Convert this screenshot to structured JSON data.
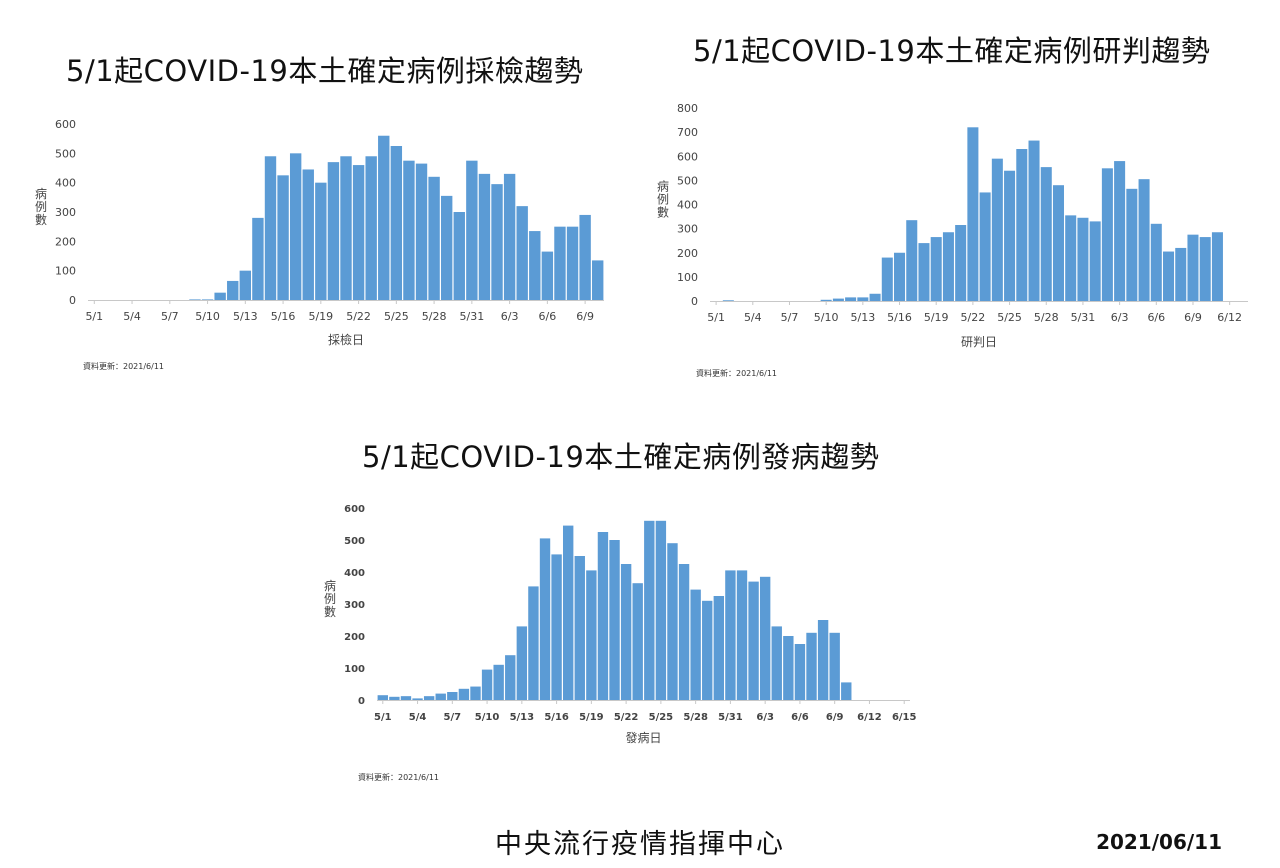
{
  "footer": {
    "agency": "中央流行疫情指揮中心",
    "date": "2021/06/11"
  },
  "chart_data": [
    {
      "type": "bar",
      "title": "5/1起COVID-19本土確定病例採檢趨勢",
      "xlabel": "採檢日",
      "ylabel": "病例數",
      "ylim": [
        0,
        600
      ],
      "yticks": [
        0,
        100,
        200,
        300,
        400,
        500,
        600
      ],
      "grid": false,
      "x_tick_labels": [
        "5/1",
        "5/4",
        "5/7",
        "5/10",
        "5/13",
        "5/16",
        "5/19",
        "5/22",
        "5/25",
        "5/28",
        "5/31",
        "6/3",
        "6/6",
        "6/9"
      ],
      "categories": [
        "5/1",
        "5/2",
        "5/3",
        "5/4",
        "5/5",
        "5/6",
        "5/7",
        "5/8",
        "5/9",
        "5/10",
        "5/11",
        "5/12",
        "5/13",
        "5/14",
        "5/15",
        "5/16",
        "5/17",
        "5/18",
        "5/19",
        "5/20",
        "5/21",
        "5/22",
        "5/23",
        "5/24",
        "5/25",
        "5/26",
        "5/27",
        "5/28",
        "5/29",
        "5/30",
        "5/31",
        "6/1",
        "6/2",
        "6/3",
        "6/4",
        "6/5",
        "6/6",
        "6/7",
        "6/8",
        "6/9",
        "6/10"
      ],
      "values": [
        0,
        0,
        0,
        0,
        0,
        0,
        0,
        0,
        2,
        2,
        25,
        65,
        100,
        280,
        490,
        425,
        500,
        445,
        400,
        470,
        490,
        460,
        490,
        560,
        525,
        475,
        465,
        420,
        355,
        300,
        475,
        430,
        395,
        430,
        320,
        235,
        165,
        250,
        250,
        290,
        135
      ],
      "color": "#5b9bd5",
      "note": "資料更新：2021/6/11"
    },
    {
      "type": "bar",
      "title": "5/1起COVID-19本土確定病例研判趨勢",
      "xlabel": "研判日",
      "ylabel": "病例數",
      "ylim": [
        0,
        800
      ],
      "yticks": [
        0,
        100,
        200,
        300,
        400,
        500,
        600,
        700,
        800
      ],
      "grid": false,
      "x_tick_labels": [
        "5/1",
        "5/4",
        "5/7",
        "5/10",
        "5/13",
        "5/16",
        "5/19",
        "5/22",
        "5/25",
        "5/28",
        "5/31",
        "6/3",
        "6/6",
        "6/9",
        "6/12"
      ],
      "categories": [
        "5/1",
        "5/2",
        "5/3",
        "5/4",
        "5/5",
        "5/6",
        "5/7",
        "5/8",
        "5/9",
        "5/10",
        "5/11",
        "5/12",
        "5/13",
        "5/14",
        "5/15",
        "5/16",
        "5/17",
        "5/18",
        "5/19",
        "5/20",
        "5/21",
        "5/22",
        "5/23",
        "5/24",
        "5/25",
        "5/26",
        "5/27",
        "5/28",
        "5/29",
        "5/30",
        "5/31",
        "6/1",
        "6/2",
        "6/3",
        "6/4",
        "6/5",
        "6/6",
        "6/7",
        "6/8",
        "6/9",
        "6/10",
        "6/11",
        "6/12",
        "6/13"
      ],
      "values": [
        0,
        3,
        0,
        0,
        0,
        0,
        0,
        0,
        0,
        5,
        10,
        15,
        15,
        30,
        180,
        200,
        335,
        240,
        265,
        285,
        315,
        720,
        450,
        590,
        540,
        630,
        665,
        555,
        480,
        355,
        345,
        330,
        550,
        580,
        465,
        505,
        320,
        205,
        220,
        275,
        265,
        285,
        0,
        0
      ],
      "color": "#5b9bd5",
      "note": "資料更新：2021/6/11"
    },
    {
      "type": "bar",
      "title": "5/1起COVID-19本土確定病例發病趨勢",
      "xlabel": "發病日",
      "ylabel": "病例數",
      "ylim": [
        0,
        600
      ],
      "yticks": [
        0,
        100,
        200,
        300,
        400,
        500,
        600
      ],
      "grid": false,
      "x_tick_labels": [
        "5/1",
        "5/4",
        "5/7",
        "5/10",
        "5/13",
        "5/16",
        "5/19",
        "5/22",
        "5/25",
        "5/28",
        "5/31",
        "6/3",
        "6/6",
        "6/9",
        "6/12",
        "6/15"
      ],
      "categories": [
        "5/1",
        "5/2",
        "5/3",
        "5/4",
        "5/5",
        "5/6",
        "5/7",
        "5/8",
        "5/9",
        "5/10",
        "5/11",
        "5/12",
        "5/13",
        "5/14",
        "5/15",
        "5/16",
        "5/17",
        "5/18",
        "5/19",
        "5/20",
        "5/21",
        "5/22",
        "5/23",
        "5/24",
        "5/25",
        "5/26",
        "5/27",
        "5/28",
        "5/29",
        "5/30",
        "5/31",
        "6/1",
        "6/2",
        "6/3",
        "6/4",
        "6/5",
        "6/6",
        "6/7",
        "6/8",
        "6/9",
        "6/10",
        "6/11",
        "6/12",
        "6/13",
        "6/14",
        "6/15"
      ],
      "values": [
        15,
        10,
        12,
        5,
        12,
        20,
        25,
        35,
        42,
        95,
        110,
        140,
        230,
        355,
        505,
        455,
        545,
        450,
        405,
        525,
        500,
        425,
        365,
        560,
        560,
        490,
        425,
        345,
        310,
        325,
        405,
        405,
        370,
        385,
        230,
        200,
        175,
        210,
        250,
        210,
        55,
        0,
        0,
        0,
        0,
        0
      ],
      "color": "#5b9bd5",
      "note": "資料更新：2021/6/11"
    }
  ]
}
